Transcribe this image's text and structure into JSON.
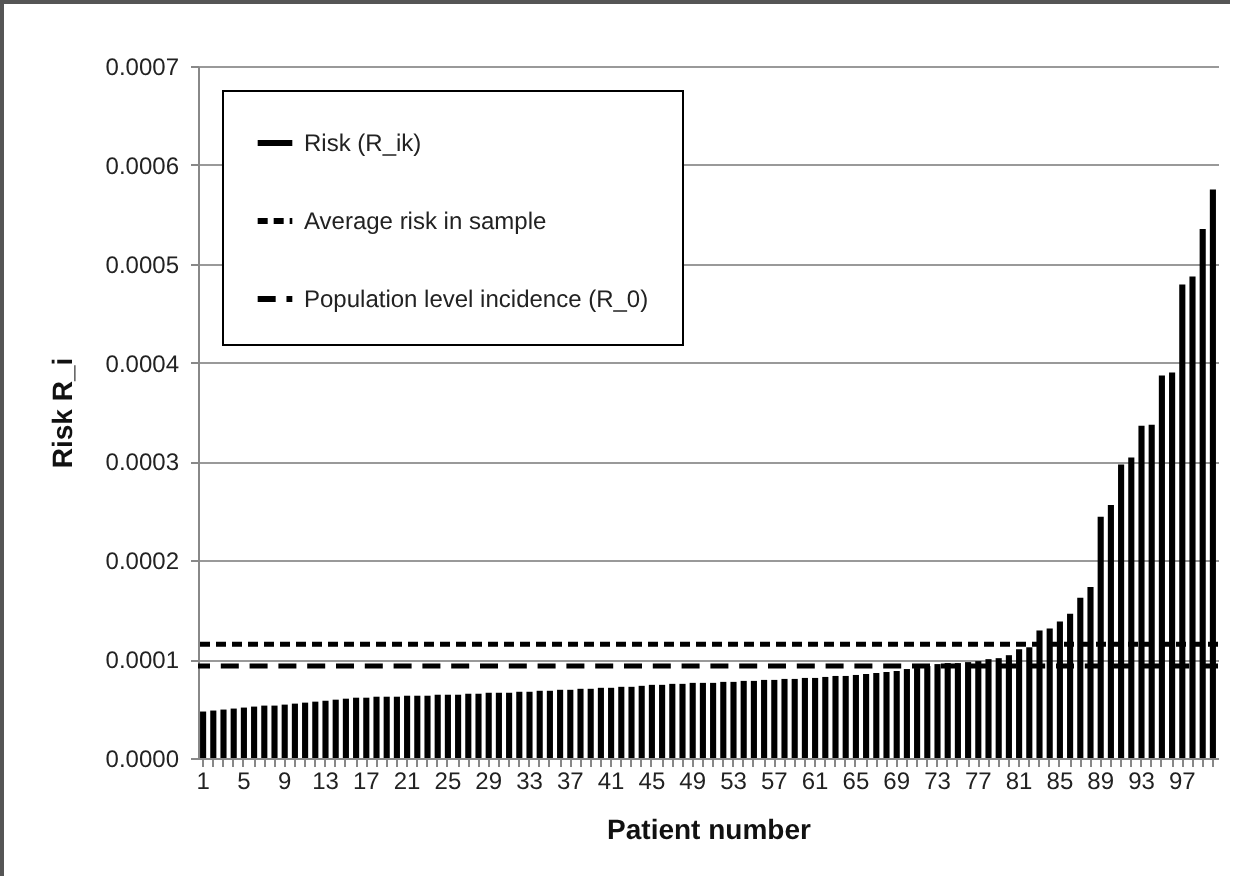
{
  "chart_data": {
    "type": "bar",
    "xlabel": "Patient number",
    "ylabel": "Risk R_i",
    "categories": [
      "1",
      null,
      null,
      null,
      "5",
      null,
      null,
      null,
      "9",
      null,
      null,
      null,
      "13",
      null,
      null,
      null,
      "17",
      null,
      null,
      null,
      "21",
      null,
      null,
      null,
      "25",
      null,
      null,
      null,
      "29",
      null,
      null,
      null,
      "33",
      null,
      null,
      null,
      "37",
      null,
      null,
      null,
      "41",
      null,
      null,
      null,
      "45",
      null,
      null,
      null,
      "49",
      null,
      null,
      null,
      "53",
      null,
      null,
      null,
      "57",
      null,
      null,
      null,
      "61",
      null,
      null,
      null,
      "65",
      null,
      null,
      null,
      "69",
      null,
      null,
      null,
      "73",
      null,
      null,
      null,
      "77",
      null,
      null,
      null,
      "81",
      null,
      null,
      null,
      "85",
      null,
      null,
      null,
      "89",
      null,
      null,
      null,
      "93",
      null,
      null,
      null,
      "97",
      null,
      null,
      null
    ],
    "series": [
      {
        "name": "Risk (R_ik)",
        "color": "#000000",
        "values": [
          4.7e-05,
          4.8e-05,
          4.9e-05,
          5e-05,
          5.1e-05,
          5.2e-05,
          5.3e-05,
          5.3e-05,
          5.4e-05,
          5.5e-05,
          5.6e-05,
          5.7e-05,
          5.8e-05,
          5.9e-05,
          6e-05,
          6.1e-05,
          6.1e-05,
          6.2e-05,
          6.2e-05,
          6.2e-05,
          6.3e-05,
          6.3e-05,
          6.3e-05,
          6.4e-05,
          6.4e-05,
          6.4e-05,
          6.5e-05,
          6.5e-05,
          6.6e-05,
          6.6e-05,
          6.6e-05,
          6.7e-05,
          6.7e-05,
          6.8e-05,
          6.8e-05,
          6.9e-05,
          6.9e-05,
          7e-05,
          7e-05,
          7.1e-05,
          7.1e-05,
          7.2e-05,
          7.2e-05,
          7.3e-05,
          7.4e-05,
          7.4e-05,
          7.5e-05,
          7.5e-05,
          7.6e-05,
          7.6e-05,
          7.6e-05,
          7.7e-05,
          7.7e-05,
          7.8e-05,
          7.8e-05,
          7.9e-05,
          7.9e-05,
          8e-05,
          8e-05,
          8.1e-05,
          8.1e-05,
          8.2e-05,
          8.3e-05,
          8.3e-05,
          8.4e-05,
          8.5e-05,
          8.6e-05,
          8.7e-05,
          8.8e-05,
          9e-05,
          9.1e-05,
          9.3e-05,
          9.5e-05,
          9.6e-05,
          9.6e-05,
          9.7e-05,
          9.8e-05,
          0.0001,
          0.000101,
          0.000104,
          0.00011,
          0.000112,
          0.000129,
          0.000131,
          0.000138,
          0.000146,
          0.000162,
          0.000173,
          0.000244,
          0.000256,
          0.000297,
          0.000304,
          0.000336,
          0.000337,
          0.000387,
          0.00039,
          0.000479,
          0.000487,
          0.000535,
          0.000575
        ]
      }
    ],
    "ref_lines": [
      {
        "axis": "y",
        "value": 0.000115,
        "label": "Average risk in sample",
        "color": "#000000",
        "line_style": "dashed"
      },
      {
        "axis": "y",
        "value": 9.3e-05,
        "label": "Population level incidence (R_0)",
        "color": "#000000",
        "line_style": "dashed"
      }
    ],
    "ylim": [
      0,
      0.0007
    ],
    "yticks": [
      {
        "value": 0,
        "label": "0.0000"
      },
      0.0001,
      0.0002,
      0.0003,
      0.0004,
      0.0005,
      0.0006,
      0.0007
    ],
    "grid": "y",
    "legend": "top left"
  }
}
